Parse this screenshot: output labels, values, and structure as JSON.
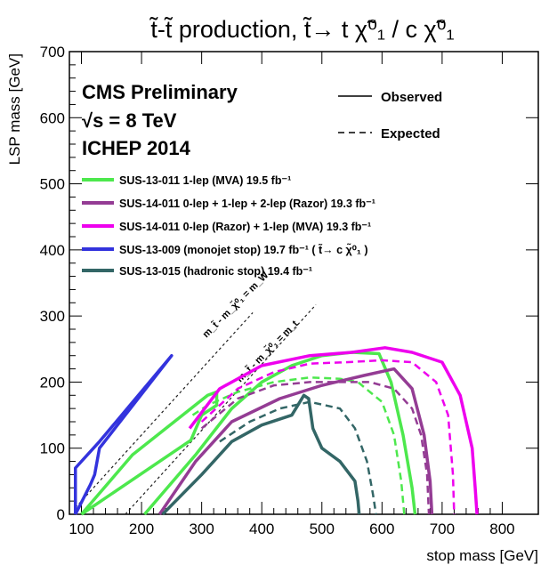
{
  "chart_data": {
    "type": "line",
    "title": "t̃-t̃ production,  t̃→ t χ̃⁰₁ / c χ̃⁰₁",
    "xlabel": "stop mass [GeV]",
    "ylabel": "LSP mass [GeV]",
    "xlim": [
      80,
      860
    ],
    "ylim": [
      0,
      700
    ],
    "x_ticks": [
      100,
      200,
      300,
      400,
      500,
      600,
      700,
      800
    ],
    "y_ticks": [
      0,
      100,
      200,
      300,
      400,
      500,
      600,
      700
    ],
    "header": {
      "line1": "CMS Preliminary",
      "line2": "√s = 8 TeV",
      "line3": "ICHEP 2014"
    },
    "style_legend": {
      "observed": "Observed",
      "expected": "Expected"
    },
    "legend_position": "top-left",
    "diagonals": [
      {
        "label": "m_t̃ - m_χ̃⁰₁ = m_W",
        "x": [
          90,
          385
        ],
        "y": [
          10,
          305
        ]
      },
      {
        "label": "m_t̃ - m_χ̃⁰₁ = m_t",
        "x": [
          173,
          490
        ],
        "y": [
          0,
          317
        ]
      }
    ],
    "series": [
      {
        "name": "SUS-13-011  1-lep (MVA) 19.5 fb⁻¹",
        "color": "#4de84d",
        "observed": [
          {
            "x": [
              100,
              185,
              310,
              325,
              325,
              300,
              282,
              100
            ],
            "y": [
              0,
              90,
              180,
              185,
              165,
              150,
              112,
              0
            ]
          },
          {
            "x": [
              205,
              290,
              350,
              400,
              450,
              500,
              550,
              595,
              615,
              635,
              650,
              655
            ],
            "y": [
              0,
              90,
              160,
              200,
              225,
              240,
              245,
              243,
              200,
              120,
              40,
              0
            ]
          }
        ],
        "expected": [
          {
            "x": [
              285,
              310,
              360,
              420,
              480,
              530,
              560,
              600,
              620,
              632,
              637
            ],
            "y": [
              150,
              165,
              185,
              200,
              207,
              205,
              200,
              170,
              120,
              50,
              0
            ]
          }
        ]
      },
      {
        "name": "SUS-14-011  0-lep + 1-lep + 2-lep (Razor)  19.3 fb⁻¹",
        "color": "#943c94",
        "observed": [
          {
            "x": [
              230,
              290,
              350,
              430,
              500,
              570,
              620,
              650,
              670,
              680,
              683
            ],
            "y": [
              0,
              80,
              140,
              175,
              195,
              210,
              220,
              190,
              120,
              50,
              0
            ]
          }
        ],
        "expected": [
          {
            "x": [
              300,
              360,
              420,
              480,
              540,
              580,
              620,
              650,
              665,
              675,
              678
            ],
            "y": [
              130,
              175,
              195,
              200,
              200,
              200,
              190,
              160,
              120,
              60,
              0
            ]
          }
        ]
      },
      {
        "name": "SUS-14-011  0-lep (Razor) + 1-lep (MVA)  19.3 fb⁻¹",
        "color": "#ee00ee",
        "observed": [
          {
            "x": [
              280,
              330,
              400,
              480,
              550,
              605,
              650,
              700,
              730,
              750,
              755,
              758
            ],
            "y": [
              130,
              190,
              225,
              240,
              245,
              252,
              245,
              230,
              180,
              100,
              40,
              0
            ]
          }
        ],
        "expected": [
          {
            "x": [
              300,
              360,
              420,
              480,
              540,
              600,
              650,
              690,
              710,
              718,
              720
            ],
            "y": [
              140,
              190,
              215,
              228,
              230,
              233,
              230,
              200,
              150,
              60,
              0
            ]
          }
        ]
      },
      {
        "name": "SUS-13-009  (monojet stop)  19.7 fb⁻¹ ( t̃→ c χ̃⁰₁ )",
        "color": "#3333dd",
        "observed": [
          {
            "x": [
              90,
              90,
              130,
              250,
              130,
              122,
              115,
              90
            ],
            "y": [
              0,
              70,
              110,
              240,
              100,
              60,
              45,
              0
            ]
          }
        ],
        "expected": []
      },
      {
        "name": "SUS-13-015  (hadronic stop)  19.4 fb⁻¹",
        "color": "#336666",
        "observed": [
          {
            "x": [
              235,
              300,
              350,
              400,
              450,
              470,
              478,
              485,
              500,
              530,
              555,
              560,
              562
            ],
            "y": [
              0,
              60,
              110,
              135,
              150,
              180,
              175,
              130,
              100,
              80,
              50,
              20,
              0
            ]
          }
        ],
        "expected": [
          {
            "x": [
              330,
              380,
              430,
              480,
              530,
              555,
              575,
              585,
              590
            ],
            "y": [
              110,
              140,
              160,
              170,
              160,
              130,
              80,
              30,
              0
            ]
          }
        ]
      }
    ]
  }
}
